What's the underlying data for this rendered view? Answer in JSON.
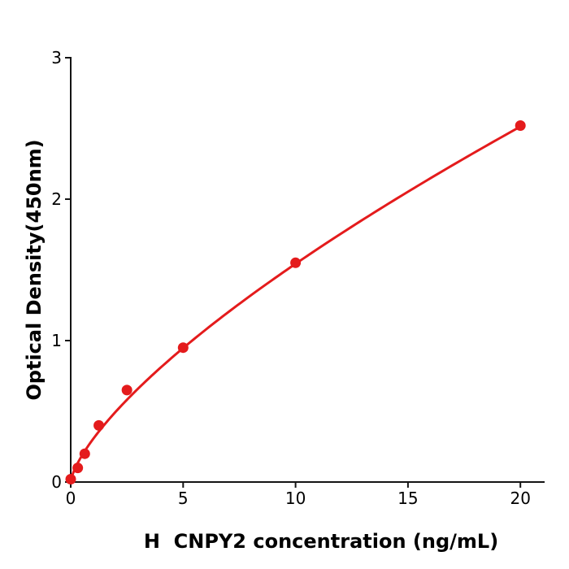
{
  "figure": {
    "background": "#ffffff"
  },
  "chart_data": {
    "type": "scatter",
    "title": "",
    "xlabel": "H  CNPY2 concentration (ng/mL)",
    "ylabel": "Optical Density(450nm)",
    "xlim": [
      0,
      21.1
    ],
    "ylim": [
      0,
      3
    ],
    "x_ticks": [
      0,
      5,
      10,
      15,
      20
    ],
    "y_ticks": [
      0,
      1,
      2,
      3
    ],
    "grid": false,
    "legend": false,
    "points": [
      {
        "x": 0,
        "y": 0.02
      },
      {
        "x": 0.313,
        "y": 0.1
      },
      {
        "x": 0.625,
        "y": 0.2
      },
      {
        "x": 1.25,
        "y": 0.4
      },
      {
        "x": 2.5,
        "y": 0.65
      },
      {
        "x": 5,
        "y": 0.95
      },
      {
        "x": 10,
        "y": 1.55
      },
      {
        "x": 20,
        "y": 2.52
      }
    ],
    "fit_curve": {
      "model": "power",
      "equation": "y = 0.305 * x^0.704",
      "a": 0.305,
      "b": 0.704,
      "x_start": 0,
      "x_end": 20
    },
    "colors": {
      "series": "#e41b1c",
      "axis": "#141414",
      "text": "#000000"
    },
    "marker_radius": 6.5,
    "curve_width": 3
  }
}
